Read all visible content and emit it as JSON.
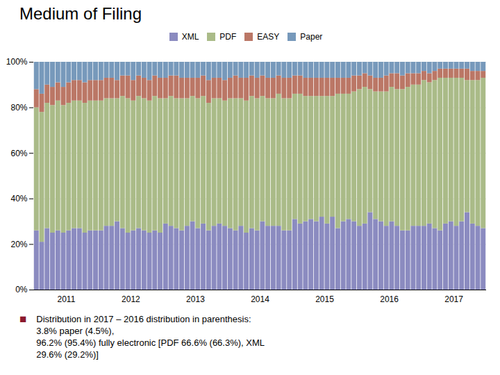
{
  "chart_data": {
    "type": "bar",
    "stacked": true,
    "title": "Medium of Filing",
    "categories": [
      null,
      null,
      null,
      null,
      null,
      "2011",
      null,
      null,
      null,
      null,
      null,
      null,
      null,
      null,
      null,
      null,
      null,
      "2012",
      null,
      null,
      null,
      null,
      null,
      null,
      null,
      null,
      null,
      null,
      null,
      "2013",
      null,
      null,
      null,
      null,
      null,
      null,
      null,
      null,
      null,
      null,
      null,
      "2014",
      null,
      null,
      null,
      null,
      null,
      null,
      null,
      null,
      null,
      null,
      null,
      "2015",
      null,
      null,
      null,
      null,
      null,
      null,
      null,
      null,
      null,
      null,
      null,
      "2016",
      null,
      null,
      null,
      null,
      null,
      null,
      null,
      null,
      null,
      null,
      null,
      "2017",
      null,
      null,
      null,
      null,
      null,
      null
    ],
    "series": [
      {
        "name": "XML",
        "color": "#8b8bc0",
        "values": [
          26,
          21,
          27,
          25,
          26,
          25,
          26,
          27,
          27,
          25,
          26,
          26,
          26,
          28,
          28,
          30,
          27,
          25,
          26,
          27,
          26,
          25,
          26,
          25,
          29,
          28,
          27,
          26,
          28,
          30,
          27,
          29,
          26,
          28,
          29,
          28,
          27,
          26,
          28,
          25,
          27,
          26,
          30,
          28,
          28,
          28,
          26,
          26,
          31,
          29,
          30,
          31,
          30,
          32,
          29,
          32,
          27,
          30,
          31,
          30,
          28,
          29,
          34,
          31,
          30,
          28,
          30,
          28,
          26,
          26,
          28,
          28,
          28,
          29,
          27,
          26,
          29,
          30,
          28,
          30,
          34,
          29,
          28,
          27
        ]
      },
      {
        "name": "PDF",
        "color": "#aabb88",
        "values": [
          54,
          57,
          55,
          56,
          57,
          56,
          56,
          56,
          56,
          57,
          57,
          57,
          57,
          56,
          56,
          54,
          58,
          59,
          57,
          58,
          58,
          58,
          59,
          59,
          55,
          57,
          57,
          58,
          56,
          55,
          57,
          56,
          56,
          56,
          55,
          55,
          57,
          58,
          56,
          58,
          58,
          58,
          55,
          56,
          56,
          58,
          58,
          58,
          55,
          57,
          55,
          54,
          55,
          53,
          56,
          53,
          59,
          56,
          55,
          57,
          60,
          60,
          54,
          56,
          57,
          59,
          59,
          60,
          62,
          63,
          62,
          62,
          64,
          62,
          65,
          67,
          64,
          63,
          65,
          63,
          58,
          63,
          64,
          66
        ]
      },
      {
        "name": "EASY",
        "color": "#bb7766",
        "values": [
          8,
          8,
          8,
          8,
          8,
          8,
          9,
          9,
          9,
          9,
          9,
          9,
          9,
          9,
          9,
          8,
          9,
          10,
          9,
          9,
          9,
          9,
          9,
          9,
          9,
          9,
          10,
          9,
          9,
          8,
          9,
          9,
          10,
          9,
          9,
          9,
          9,
          10,
          9,
          10,
          9,
          9,
          9,
          9,
          9,
          8,
          9,
          9,
          8,
          8,
          8,
          8,
          8,
          8,
          8,
          8,
          7,
          7,
          7,
          7,
          6,
          6,
          6,
          6,
          6,
          7,
          6,
          7,
          6,
          6,
          5,
          5,
          4,
          4,
          4,
          4,
          4,
          4,
          4,
          4,
          5,
          4,
          4,
          3
        ]
      },
      {
        "name": "Paper",
        "color": "#7799bb",
        "values": [
          12,
          14,
          10,
          11,
          9,
          11,
          9,
          8,
          8,
          9,
          8,
          8,
          8,
          7,
          7,
          8,
          6,
          6,
          8,
          6,
          7,
          8,
          6,
          7,
          7,
          6,
          6,
          7,
          7,
          7,
          7,
          6,
          8,
          7,
          7,
          8,
          7,
          6,
          7,
          7,
          6,
          7,
          6,
          7,
          7,
          6,
          7,
          7,
          6,
          6,
          7,
          7,
          7,
          7,
          7,
          7,
          7,
          7,
          7,
          6,
          6,
          5,
          6,
          7,
          7,
          6,
          5,
          5,
          6,
          5,
          5,
          5,
          4,
          5,
          4,
          3,
          3,
          3,
          3,
          3,
          3,
          4,
          4,
          4
        ]
      }
    ],
    "ylim": [
      0,
      100
    ],
    "yticks": [
      {
        "value": 0,
        "label": "0%"
      },
      {
        "value": 20,
        "label": "20%"
      },
      {
        "value": 40,
        "label": "40%"
      },
      {
        "value": 60,
        "label": "60%"
      },
      {
        "value": 80,
        "label": "80%"
      },
      {
        "value": 100,
        "label": "100%"
      }
    ],
    "grid": true,
    "legend": "top",
    "annotations": [
      {
        "text": "■",
        "color": "#8b1a2e"
      },
      {
        "text": "Distribution in 2017 – 2016 distribution in parenthesis:\n3.8% paper (4.5%),\n96.2% (95.4%) fully electronic [PDF 66.6% (66.3%), XML\n29.6% (29.2%)]"
      }
    ]
  }
}
